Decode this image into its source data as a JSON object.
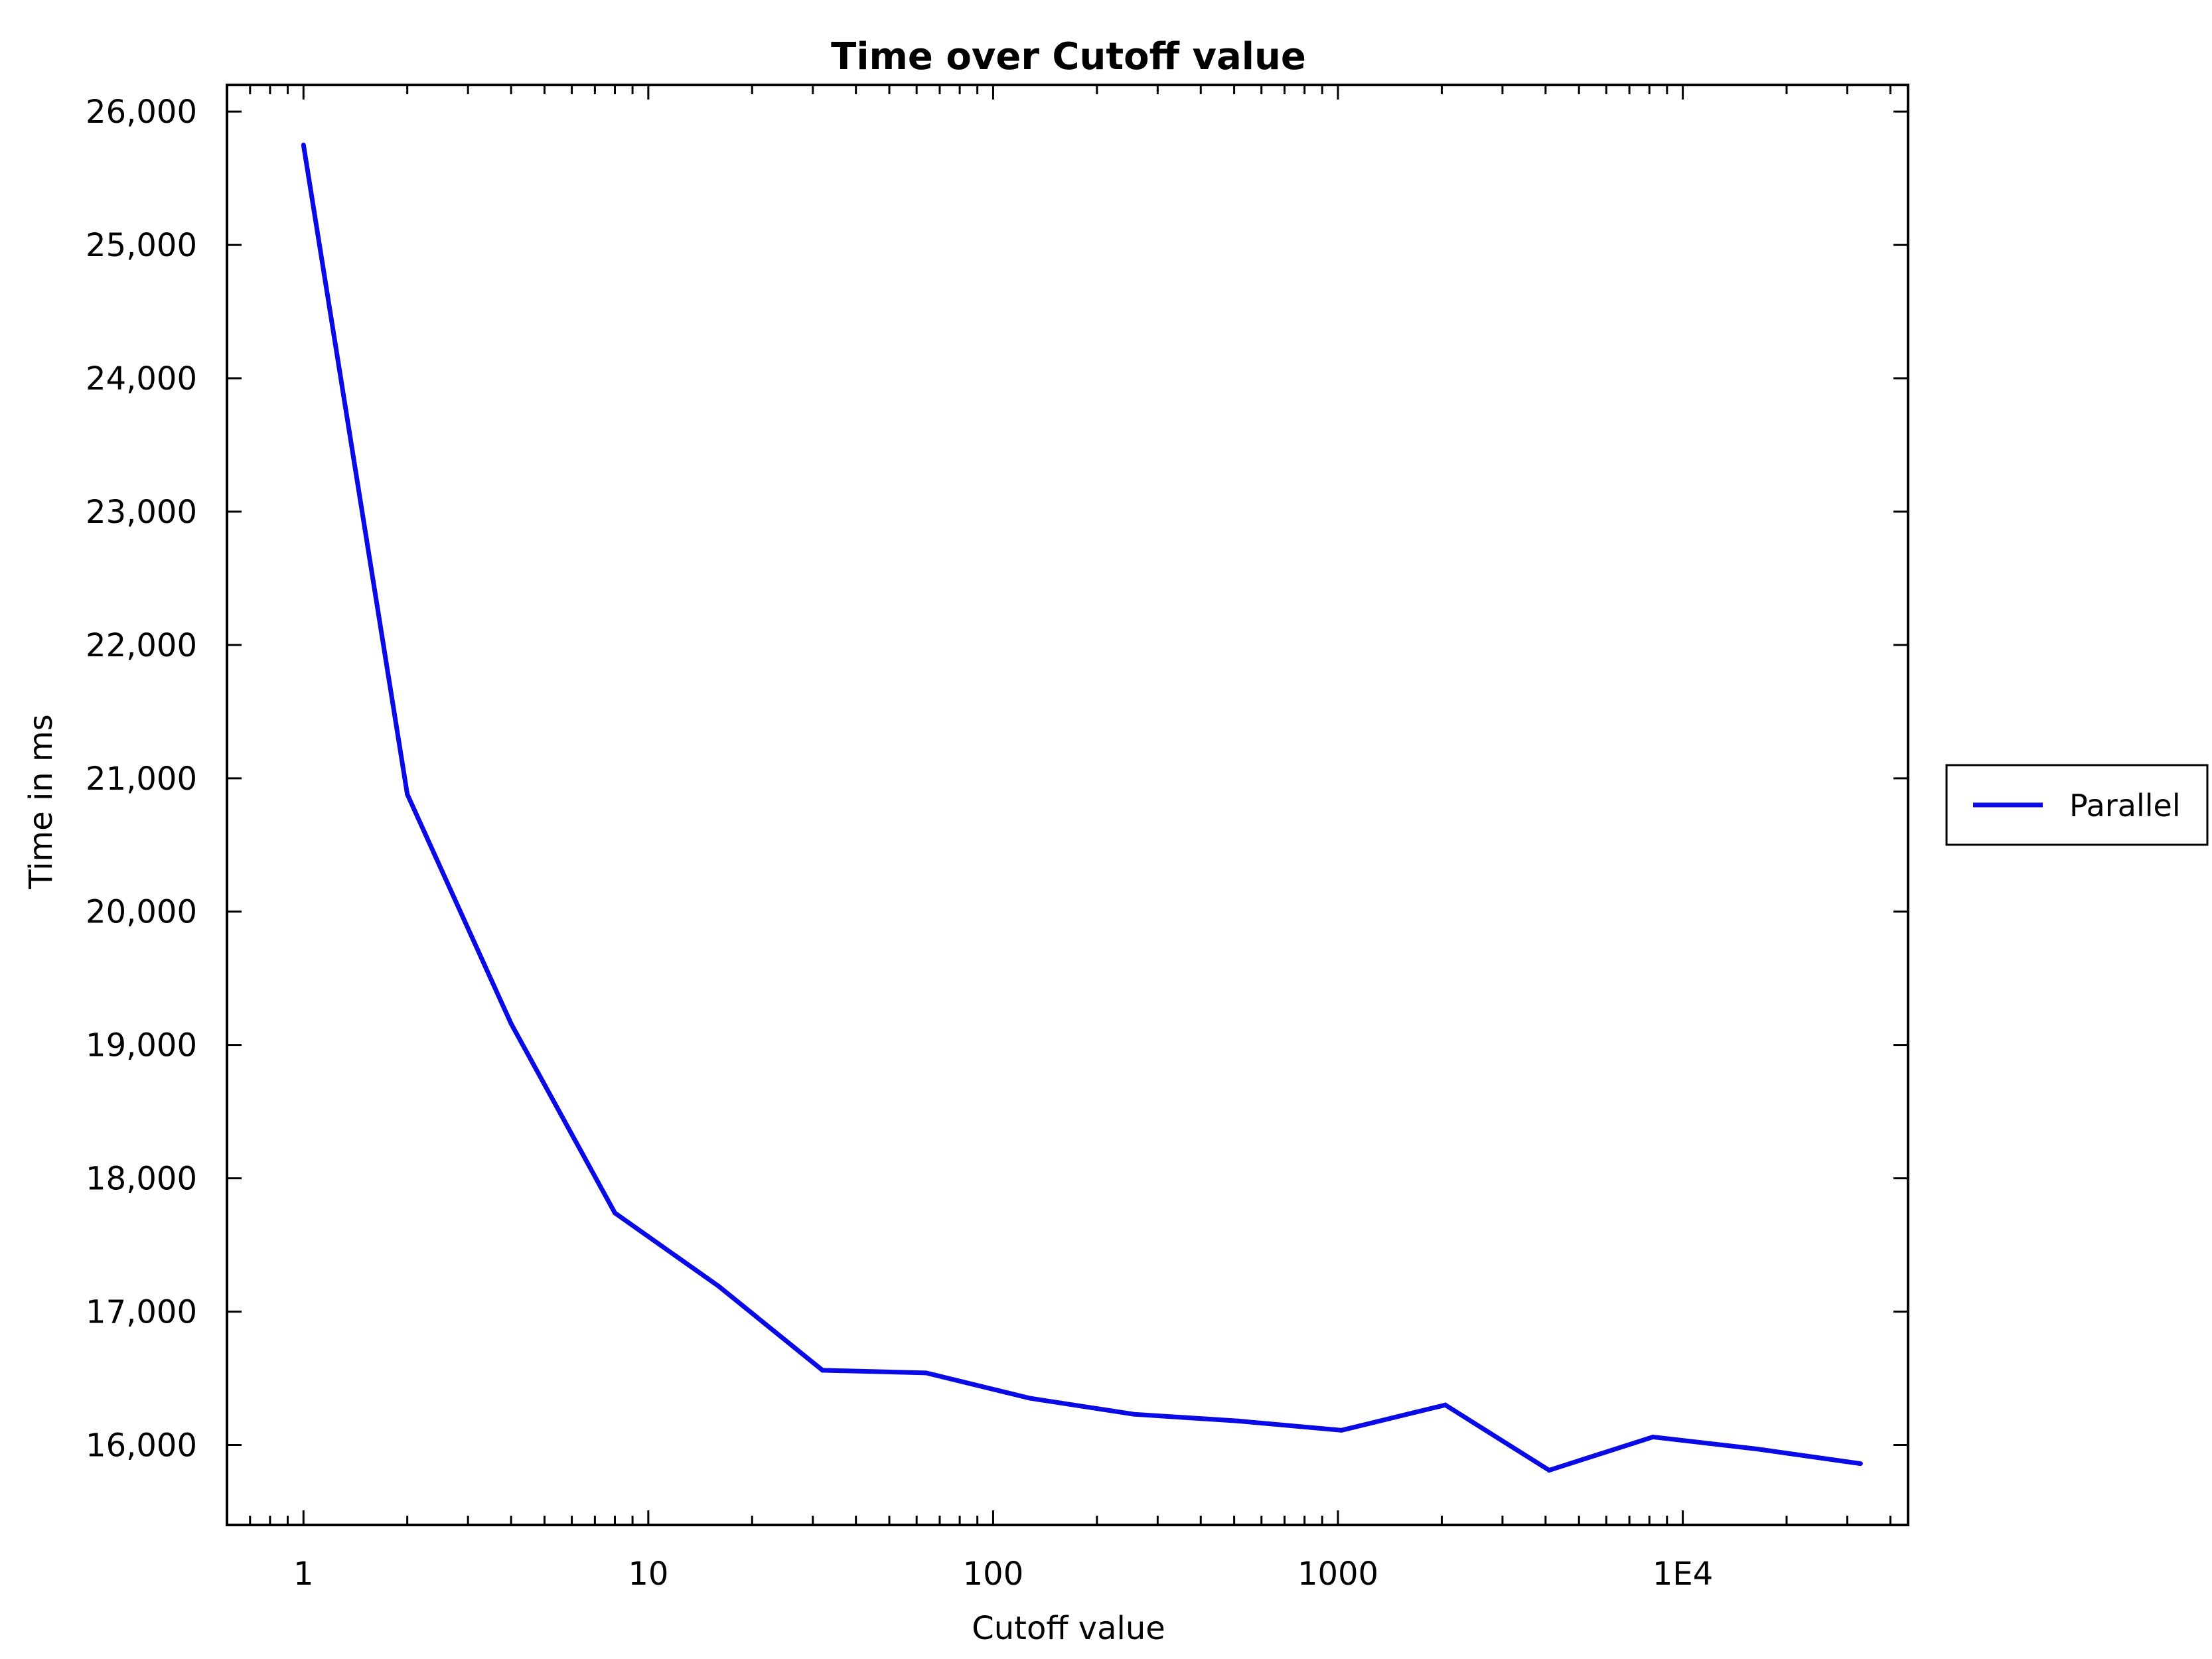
{
  "chart_data": {
    "type": "line",
    "title": "Time over Cutoff value",
    "xlabel": "Cutoff value",
    "ylabel": "Time in ms",
    "x_scale": "log",
    "xlim": [
      0.6,
      45000
    ],
    "ylim": [
      15400,
      26200
    ],
    "x_ticks": [
      {
        "value": 1,
        "label": "1"
      },
      {
        "value": 10,
        "label": "10"
      },
      {
        "value": 100,
        "label": "100"
      },
      {
        "value": 1000,
        "label": "1000"
      },
      {
        "value": 10000,
        "label": "1E4"
      }
    ],
    "y_ticks": [
      {
        "value": 16000,
        "label": "16,000"
      },
      {
        "value": 17000,
        "label": "17,000"
      },
      {
        "value": 18000,
        "label": "18,000"
      },
      {
        "value": 19000,
        "label": "19,000"
      },
      {
        "value": 20000,
        "label": "20,000"
      },
      {
        "value": 21000,
        "label": "21,000"
      },
      {
        "value": 22000,
        "label": "22,000"
      },
      {
        "value": 23000,
        "label": "23,000"
      },
      {
        "value": 24000,
        "label": "24,000"
      },
      {
        "value": 25000,
        "label": "25,000"
      },
      {
        "value": 26000,
        "label": "26,000"
      }
    ],
    "grid": false,
    "legend_position": "right",
    "series": [
      {
        "name": "Parallel",
        "color": "#0a0ae6",
        "points": [
          [
            1,
            25750
          ],
          [
            2,
            20880
          ],
          [
            4,
            19160
          ],
          [
            8,
            17740
          ],
          [
            16,
            17190
          ],
          [
            32,
            16560
          ],
          [
            64,
            16540
          ],
          [
            128,
            16350
          ],
          [
            256,
            16230
          ],
          [
            512,
            16180
          ],
          [
            1024,
            16110
          ],
          [
            2048,
            16300
          ],
          [
            4096,
            15810
          ],
          [
            8192,
            16060
          ],
          [
            16384,
            15970
          ],
          [
            32768,
            15860
          ]
        ]
      }
    ]
  }
}
